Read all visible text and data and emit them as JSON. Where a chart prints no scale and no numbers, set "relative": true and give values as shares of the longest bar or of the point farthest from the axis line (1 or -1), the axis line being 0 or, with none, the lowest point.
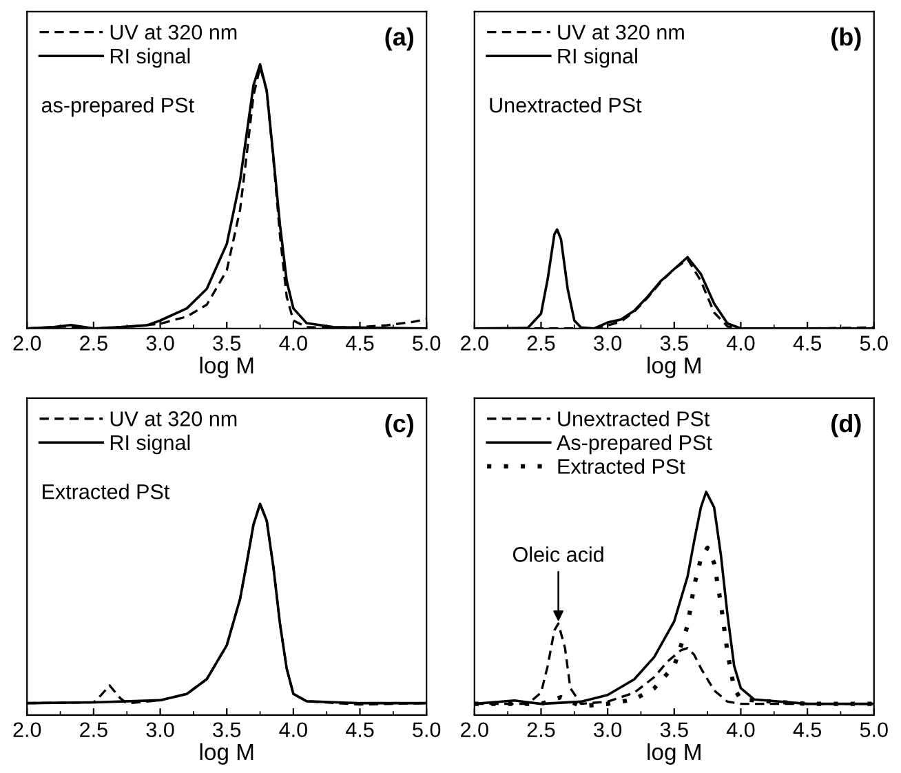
{
  "chart_data": [
    {
      "type": "line",
      "relative": true,
      "xlabel": "log M",
      "xlim": [
        2.0,
        5.0
      ],
      "xticks": [
        {
          "value": 2.0,
          "label": "2.0"
        },
        {
          "value": 2.5,
          "label": "2.5"
        },
        {
          "value": 3.0,
          "label": "3.0"
        },
        {
          "value": 3.5,
          "label": "3.5"
        },
        {
          "value": 4.0,
          "label": "4.0"
        },
        {
          "value": 4.5,
          "label": "4.5"
        },
        {
          "value": 5.0,
          "label": "5.0"
        }
      ],
      "tick_labels": "x",
      "legend": "top left",
      "grid": false,
      "annotations": [
        "as-prepared PSt",
        "(a)"
      ],
      "series": [
        {
          "name": "UV at 320 nm",
          "color": "#000000",
          "line_style": "dashed",
          "x": [
            2.0,
            2.3,
            2.5,
            2.8,
            3.0,
            3.2,
            3.35,
            3.5,
            3.6,
            3.65,
            3.7,
            3.75,
            3.8,
            3.85,
            3.9,
            3.95,
            4.0,
            4.1,
            4.3,
            4.5,
            4.7,
            4.9,
            5.0
          ],
          "values": [
            0,
            0.008,
            0,
            0.008,
            0.018,
            0.045,
            0.09,
            0.22,
            0.45,
            0.66,
            0.88,
            0.99,
            0.9,
            0.64,
            0.35,
            0.12,
            0.03,
            0.005,
            0.003,
            0.005,
            0.012,
            0.025,
            0.036
          ]
        },
        {
          "name": "RI signal",
          "color": "#000000",
          "line_style": "solid",
          "x": [
            2.0,
            2.2,
            2.33,
            2.5,
            2.7,
            2.9,
            3.0,
            3.2,
            3.35,
            3.5,
            3.6,
            3.65,
            3.7,
            3.75,
            3.8,
            3.85,
            3.9,
            3.95,
            4.0,
            4.1,
            4.3,
            4.5,
            5.0
          ],
          "values": [
            0,
            0.005,
            0.013,
            0,
            0.005,
            0.012,
            0.03,
            0.076,
            0.15,
            0.32,
            0.56,
            0.74,
            0.92,
            1.0,
            0.9,
            0.65,
            0.39,
            0.18,
            0.076,
            0.02,
            0.005,
            0.003,
            0
          ]
        }
      ]
    },
    {
      "type": "line",
      "relative": true,
      "xlabel": "log M",
      "xlim": [
        2.0,
        5.0
      ],
      "xticks": [
        {
          "value": 2.0,
          "label": "2.0"
        },
        {
          "value": 2.5,
          "label": "2.5"
        },
        {
          "value": 3.0,
          "label": "3.0"
        },
        {
          "value": 3.5,
          "label": "3.5"
        },
        {
          "value": 4.0,
          "label": "4.0"
        },
        {
          "value": 4.5,
          "label": "4.5"
        },
        {
          "value": 5.0,
          "label": "5.0"
        }
      ],
      "tick_labels": "x",
      "legend": "top left",
      "grid": false,
      "annotations": [
        "Unextracted PSt",
        "(b)"
      ],
      "series": [
        {
          "name": "UV at 320 nm",
          "color": "#000000",
          "line_style": "dashed",
          "x": [
            2.0,
            2.9,
            3.0,
            3.1,
            3.2,
            3.3,
            3.4,
            3.5,
            3.6,
            3.7,
            3.8,
            3.9,
            4.0,
            4.5,
            5.0
          ],
          "values": [
            0,
            0,
            0.03,
            0.07,
            0.17,
            0.31,
            0.47,
            0.6,
            0.7,
            0.48,
            0.16,
            0.02,
            0,
            0,
            0.01
          ]
        },
        {
          "name": "RI signal",
          "color": "#000000",
          "line_style": "solid",
          "x": [
            2.0,
            2.4,
            2.5,
            2.55,
            2.6,
            2.62,
            2.65,
            2.7,
            2.75,
            2.8,
            2.9,
            3.0,
            3.1,
            3.2,
            3.3,
            3.4,
            3.5,
            3.6,
            3.7,
            3.8,
            3.9,
            4.0,
            5.0
          ],
          "values": [
            0,
            0.005,
            0.15,
            0.5,
            0.95,
            1.0,
            0.9,
            0.4,
            0.08,
            0.01,
            0,
            0.06,
            0.09,
            0.18,
            0.32,
            0.48,
            0.6,
            0.72,
            0.55,
            0.25,
            0.05,
            0,
            0
          ]
        }
      ]
    },
    {
      "type": "line",
      "relative": true,
      "xlabel": "log M",
      "xlim": [
        2.0,
        5.0
      ],
      "xticks": [
        {
          "value": 2.0,
          "label": "2.0"
        },
        {
          "value": 2.5,
          "label": "2.5"
        },
        {
          "value": 3.0,
          "label": "3.0"
        },
        {
          "value": 3.5,
          "label": "3.5"
        },
        {
          "value": 4.0,
          "label": "4.0"
        },
        {
          "value": 4.5,
          "label": "4.5"
        },
        {
          "value": 5.0,
          "label": "5.0"
        }
      ],
      "tick_labels": "x",
      "legend": "top left",
      "grid": false,
      "annotations": [
        "Extracted PSt",
        "(c)"
      ],
      "series": [
        {
          "name": "UV at 320 nm",
          "color": "#000000",
          "line_style": "dashed",
          "x": [
            2.0,
            2.5,
            2.55,
            2.62,
            2.7,
            2.75,
            3.0,
            3.2,
            3.35,
            3.5,
            3.6,
            3.65,
            3.7,
            3.75,
            3.8,
            3.85,
            3.9,
            3.95,
            4.0,
            4.1,
            4.5,
            5.0
          ],
          "values": [
            0.056,
            0.06,
            0.09,
            0.14,
            0.08,
            0.055,
            0.07,
            0.1,
            0.17,
            0.33,
            0.55,
            0.72,
            0.9,
            1.0,
            0.92,
            0.7,
            0.43,
            0.22,
            0.1,
            0.065,
            0.05,
            0.056
          ]
        },
        {
          "name": "RI signal",
          "color": "#000000",
          "line_style": "solid",
          "x": [
            2.0,
            2.5,
            3.0,
            3.2,
            3.35,
            3.5,
            3.6,
            3.65,
            3.7,
            3.75,
            3.8,
            3.85,
            3.9,
            3.95,
            4.0,
            4.1,
            4.5,
            5.0
          ],
          "values": [
            0.056,
            0.06,
            0.07,
            0.1,
            0.17,
            0.33,
            0.55,
            0.72,
            0.9,
            1.0,
            0.92,
            0.7,
            0.43,
            0.22,
            0.1,
            0.065,
            0.056,
            0.056
          ]
        }
      ]
    },
    {
      "type": "line",
      "relative": true,
      "xlabel": "log M",
      "xlim": [
        2.0,
        5.0
      ],
      "xticks": [
        {
          "value": 2.0,
          "label": "2.0"
        },
        {
          "value": 2.5,
          "label": "2.5"
        },
        {
          "value": 3.0,
          "label": "3.0"
        },
        {
          "value": 3.5,
          "label": "3.5"
        },
        {
          "value": 4.0,
          "label": "4.0"
        },
        {
          "value": 4.5,
          "label": "4.5"
        },
        {
          "value": 5.0,
          "label": "5.0"
        }
      ],
      "tick_labels": "x",
      "legend": "top left",
      "grid": false,
      "annotations": [
        {
          "text": "Oleic acid",
          "x": 2.63,
          "y": 0.41
        },
        "(d)"
      ],
      "series": [
        {
          "name": "Unextracted PSt",
          "color": "#000000",
          "line_style": "dashed",
          "x": [
            2.0,
            2.4,
            2.5,
            2.55,
            2.6,
            2.63,
            2.68,
            2.72,
            2.8,
            3.0,
            3.2,
            3.35,
            3.45,
            3.55,
            3.6,
            3.65,
            3.7,
            3.8,
            3.9,
            4.0,
            5.0
          ],
          "values": [
            0.05,
            0.05,
            0.1,
            0.22,
            0.38,
            0.41,
            0.3,
            0.12,
            0.05,
            0.06,
            0.1,
            0.17,
            0.24,
            0.29,
            0.3,
            0.27,
            0.21,
            0.11,
            0.06,
            0.05,
            0.05
          ]
        },
        {
          "name": "As-prepared PSt",
          "color": "#000000",
          "line_style": "solid",
          "x": [
            2.0,
            2.3,
            2.5,
            2.8,
            3.0,
            3.2,
            3.35,
            3.5,
            3.6,
            3.65,
            3.7,
            3.74,
            3.8,
            3.85,
            3.9,
            3.95,
            4.0,
            4.1,
            4.5,
            5.0
          ],
          "values": [
            0.05,
            0.065,
            0.05,
            0.06,
            0.09,
            0.16,
            0.26,
            0.42,
            0.62,
            0.78,
            0.93,
            1.0,
            0.93,
            0.72,
            0.45,
            0.22,
            0.12,
            0.07,
            0.05,
            0.05
          ]
        },
        {
          "name": "Extracted PSt",
          "color": "#000000",
          "line_style": "dotted",
          "x": [
            2.0,
            2.5,
            2.6,
            2.65,
            2.72,
            2.8,
            3.0,
            3.2,
            3.35,
            3.5,
            3.6,
            3.65,
            3.7,
            3.75,
            3.8,
            3.85,
            3.9,
            3.95,
            4.0,
            4.5,
            5.0
          ],
          "values": [
            0.05,
            0.05,
            0.07,
            0.08,
            0.06,
            0.04,
            0.05,
            0.07,
            0.12,
            0.22,
            0.4,
            0.58,
            0.7,
            0.75,
            0.68,
            0.5,
            0.28,
            0.12,
            0.07,
            0.05,
            0.05
          ]
        }
      ]
    }
  ]
}
